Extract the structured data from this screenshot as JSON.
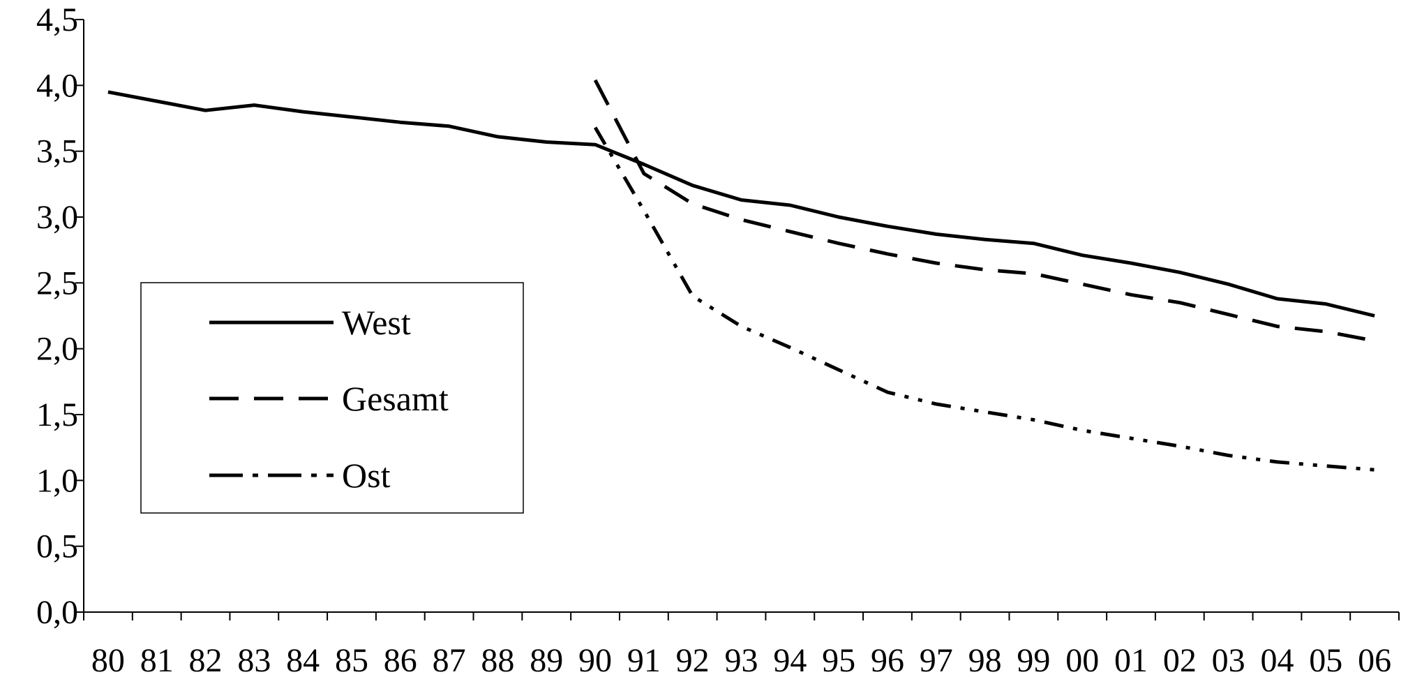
{
  "chart_data": {
    "type": "line",
    "title": "",
    "xlabel": "",
    "ylabel": "",
    "categories": [
      "80",
      "81",
      "82",
      "83",
      "84",
      "85",
      "86",
      "87",
      "88",
      "89",
      "90",
      "91",
      "92",
      "93",
      "94",
      "95",
      "96",
      "97",
      "98",
      "99",
      "00",
      "01",
      "02",
      "03",
      "04",
      "05",
      "06"
    ],
    "ylim": [
      0,
      4.5
    ],
    "y_ticks": [
      "0,0",
      "0,5",
      "1,0",
      "1,5",
      "2,0",
      "2,5",
      "3,0",
      "3,5",
      "4,0",
      "4,5"
    ],
    "grid": false,
    "legend_position": "left",
    "series": [
      {
        "name": "West",
        "style": "solid",
        "values": [
          3.95,
          3.88,
          3.81,
          3.85,
          3.8,
          3.76,
          3.72,
          3.69,
          3.61,
          3.57,
          3.55,
          3.4,
          3.24,
          3.13,
          3.09,
          3.0,
          2.93,
          2.87,
          2.83,
          2.8,
          2.71,
          2.65,
          2.58,
          2.49,
          2.38,
          2.34,
          2.25
        ]
      },
      {
        "name": "Gesamt",
        "style": "dashed",
        "values": [
          null,
          null,
          null,
          null,
          null,
          null,
          null,
          null,
          null,
          null,
          4.04,
          3.33,
          3.1,
          2.98,
          2.89,
          2.8,
          2.72,
          2.65,
          2.6,
          2.57,
          2.49,
          2.41,
          2.35,
          2.26,
          2.17,
          2.13,
          2.06
        ]
      },
      {
        "name": "Ost",
        "style": "dashdotdot",
        "values": [
          null,
          null,
          null,
          null,
          null,
          null,
          null,
          null,
          null,
          null,
          3.68,
          3.05,
          2.4,
          2.17,
          2.01,
          1.84,
          1.67,
          1.58,
          1.52,
          1.46,
          1.38,
          1.32,
          1.26,
          1.19,
          1.14,
          1.11,
          1.08
        ]
      }
    ]
  }
}
